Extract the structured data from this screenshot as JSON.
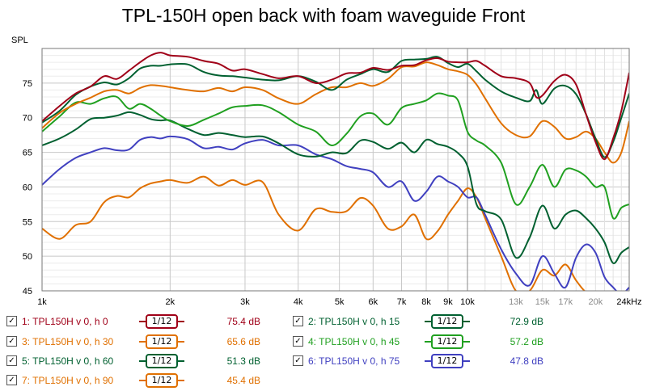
{
  "chart_data": {
    "type": "line",
    "title": "TPL-150H open back with foam waveguide Front",
    "ylabel": "SPL",
    "xscale": "log",
    "xlim": [
      1000,
      24000
    ],
    "ylim": [
      45,
      80
    ],
    "grid": true,
    "y_ticks": [
      75,
      70,
      65,
      60,
      55,
      50,
      45
    ],
    "x_ticks": [
      {
        "value": 1000,
        "label": "1k"
      },
      {
        "value": 2000,
        "label": "2k"
      },
      {
        "value": 3000,
        "label": "3k"
      },
      {
        "value": 4000,
        "label": "4k"
      },
      {
        "value": 5000,
        "label": "5k"
      },
      {
        "value": 6000,
        "label": "6k"
      },
      {
        "value": 7000,
        "label": "7k"
      },
      {
        "value": 8000,
        "label": "8k"
      },
      {
        "value": 9000,
        "label": "9k"
      },
      {
        "value": 10000,
        "label": "10k"
      },
      {
        "value": 13000,
        "label": "13k"
      },
      {
        "value": 15000,
        "label": "15k"
      },
      {
        "value": 17000,
        "label": "17k"
      },
      {
        "value": 20000,
        "label": "20k"
      },
      {
        "value": 24000,
        "label": "24kHz"
      }
    ],
    "series": [
      {
        "name": "1: TPL150H v 0, h 0",
        "color": "#a00018",
        "value_label": "75.4 dB",
        "x": [
          1000,
          1100,
          1200,
          1300,
          1400,
          1500,
          1600,
          1700,
          1800,
          1900,
          2000,
          2200,
          2400,
          2600,
          2800,
          3000,
          3300,
          3600,
          4000,
          4400,
          4800,
          5200,
          5600,
          6000,
          6500,
          7000,
          7500,
          8000,
          8500,
          9000,
          9500,
          10000,
          10500,
          11000,
          12000,
          13000,
          14000,
          14500,
          15000,
          16000,
          17000,
          18000,
          19000,
          20000,
          21000,
          22000,
          23000,
          24000
        ],
        "y": [
          69.5,
          71.7,
          73.5,
          74.5,
          76.0,
          75.6,
          76.8,
          78.0,
          79.0,
          79.4,
          79.0,
          78.8,
          78.2,
          77.8,
          76.8,
          77.0,
          76.3,
          75.7,
          76.0,
          75.0,
          75.5,
          76.4,
          76.5,
          77.2,
          76.9,
          77.5,
          77.6,
          78.3,
          78.6,
          78.1,
          78.0,
          78.0,
          78.2,
          77.5,
          76.0,
          75.7,
          75.0,
          73.0,
          73.2,
          75.3,
          76.2,
          74.8,
          70.5,
          66.5,
          64.0,
          67.0,
          71.0,
          76.5
        ]
      },
      {
        "name": "2: TPL150H v 0, h 15",
        "color": "#006030",
        "value_label": "72.9 dB",
        "x": [
          1000,
          1100,
          1200,
          1300,
          1400,
          1500,
          1600,
          1700,
          1800,
          1900,
          2000,
          2200,
          2400,
          2600,
          2800,
          3000,
          3300,
          3600,
          4000,
          4400,
          4800,
          5200,
          5600,
          6000,
          6500,
          7000,
          7500,
          8000,
          8500,
          9000,
          9500,
          10000,
          10500,
          11000,
          12000,
          13000,
          14000,
          14500,
          15000,
          16000,
          17000,
          18000,
          19000,
          20000,
          21000,
          22000,
          23000,
          24000
        ],
        "y": [
          69.3,
          71.0,
          73.3,
          74.5,
          75.1,
          74.8,
          75.7,
          77.1,
          77.5,
          77.5,
          77.7,
          77.7,
          76.6,
          76.1,
          76.0,
          75.8,
          75.5,
          75.4,
          76.0,
          75.2,
          74.0,
          75.5,
          76.3,
          77.0,
          76.6,
          78.2,
          78.4,
          78.5,
          78.8,
          77.9,
          77.3,
          77.8,
          76.7,
          75.5,
          73.8,
          72.9,
          72.4,
          74.0,
          72.0,
          74.2,
          74.6,
          73.4,
          70.5,
          67.0,
          64.3,
          66.5,
          70.0,
          73.5
        ]
      },
      {
        "name": "3: TPL150H v 0, h 30",
        "color": "#e07000",
        "value_label": "65.6 dB",
        "x": [
          1000,
          1100,
          1200,
          1300,
          1400,
          1500,
          1600,
          1700,
          1800,
          1900,
          2000,
          2200,
          2400,
          2600,
          2800,
          3000,
          3300,
          3600,
          4000,
          4400,
          4800,
          5200,
          5600,
          6000,
          6500,
          7000,
          7500,
          8000,
          8500,
          9000,
          9500,
          10000,
          10500,
          11000,
          12000,
          13000,
          14000,
          15000,
          16000,
          17000,
          18000,
          19000,
          20000,
          21000,
          22000,
          23000,
          24000
        ],
        "y": [
          68.5,
          70.7,
          72.0,
          72.9,
          73.8,
          74.0,
          73.5,
          74.3,
          74.7,
          74.6,
          74.4,
          74.0,
          73.8,
          74.3,
          73.8,
          74.4,
          74.0,
          72.8,
          72.0,
          73.4,
          74.4,
          74.4,
          75.0,
          74.6,
          75.6,
          77.3,
          77.4,
          78.0,
          77.6,
          77.0,
          76.7,
          76.2,
          74.8,
          72.8,
          69.2,
          67.5,
          67.3,
          69.5,
          68.7,
          67.0,
          67.2,
          68.0,
          67.0,
          65.0,
          63.5,
          65.0,
          69.5
        ]
      },
      {
        "name": "4: TPL150H v 0, h 45",
        "color": "#20a020",
        "value_label": "57.2 dB",
        "x": [
          1000,
          1100,
          1200,
          1300,
          1400,
          1500,
          1600,
          1700,
          1800,
          1900,
          2000,
          2200,
          2400,
          2600,
          2800,
          3000,
          3300,
          3600,
          4000,
          4400,
          4800,
          5200,
          5600,
          6000,
          6500,
          7000,
          7500,
          8000,
          8500,
          9000,
          9500,
          10000,
          10500,
          11000,
          12000,
          13000,
          14000,
          15000,
          16000,
          17000,
          18000,
          19000,
          20000,
          21000,
          22000,
          23000,
          24000
        ],
        "y": [
          68.0,
          70.2,
          72.2,
          72.0,
          72.8,
          73.0,
          71.3,
          72.0,
          71.3,
          70.3,
          69.5,
          68.8,
          69.7,
          70.6,
          71.5,
          71.7,
          71.8,
          70.8,
          69.0,
          68.0,
          66.0,
          67.7,
          70.2,
          70.6,
          69.0,
          71.4,
          72.0,
          72.5,
          73.5,
          73.2,
          72.5,
          68.0,
          66.7,
          66.0,
          63.5,
          57.5,
          60.0,
          63.2,
          60.0,
          62.5,
          62.4,
          61.5,
          60.0,
          60.0,
          55.5,
          57.0,
          57.5
        ]
      },
      {
        "name": "5: TPL150H v 0, h 60",
        "color": "#006030",
        "value_label": "51.3 dB",
        "x": [
          1000,
          1100,
          1200,
          1300,
          1400,
          1500,
          1600,
          1700,
          1800,
          1900,
          2000,
          2200,
          2400,
          2600,
          2800,
          3000,
          3300,
          3600,
          4000,
          4400,
          4800,
          5200,
          5600,
          6000,
          6500,
          7000,
          7500,
          8000,
          8500,
          9000,
          9500,
          10000,
          10500,
          11000,
          12000,
          13000,
          14000,
          15000,
          16000,
          17000,
          18000,
          19000,
          20000,
          21000,
          22000,
          23000,
          24000
        ],
        "y": [
          66.0,
          67.0,
          68.3,
          69.8,
          70.0,
          70.3,
          70.8,
          70.4,
          69.8,
          69.6,
          69.6,
          68.4,
          67.5,
          67.8,
          67.5,
          67.2,
          67.3,
          66.3,
          64.7,
          64.4,
          65.0,
          64.9,
          66.7,
          66.5,
          65.5,
          66.4,
          65.0,
          66.8,
          66.2,
          65.8,
          64.9,
          63.0,
          57.5,
          56.5,
          55.3,
          49.8,
          52.7,
          57.3,
          54.0,
          56.0,
          56.6,
          55.5,
          54.0,
          52.0,
          49.0,
          50.5,
          51.3
        ]
      },
      {
        "name": "6: TPL150H v 0, h 75",
        "color": "#4040c0",
        "value_label": "47.8 dB",
        "x": [
          1000,
          1100,
          1200,
          1300,
          1400,
          1500,
          1600,
          1700,
          1800,
          1900,
          2000,
          2200,
          2400,
          2600,
          2800,
          3000,
          3300,
          3600,
          4000,
          4400,
          4800,
          5200,
          5600,
          6000,
          6500,
          7000,
          7500,
          8000,
          8500,
          9000,
          9500,
          10000,
          10500,
          11000,
          12000,
          13000,
          14000,
          15000,
          16000,
          17000,
          18000,
          19000,
          20000,
          21000,
          22000,
          23000,
          24000
        ],
        "y": [
          60.3,
          62.6,
          64.2,
          65.0,
          65.6,
          65.3,
          65.4,
          66.8,
          67.2,
          67.0,
          67.3,
          66.9,
          65.6,
          65.8,
          65.4,
          66.3,
          66.8,
          66.0,
          66.0,
          64.7,
          64.0,
          63.0,
          62.6,
          62.1,
          60.0,
          60.8,
          58.0,
          59.3,
          61.5,
          60.8,
          60.0,
          58.5,
          58.5,
          56.0,
          51.0,
          47.5,
          45.8,
          50.0,
          47.5,
          45.5,
          49.8,
          51.7,
          50.5,
          47.0,
          45.5,
          44.5,
          45.5
        ]
      },
      {
        "name": "7: TPL150H v 0, h 90",
        "color": "#e07000",
        "value_label": "45.4 dB",
        "x": [
          1000,
          1100,
          1200,
          1300,
          1400,
          1500,
          1600,
          1700,
          1800,
          1900,
          2000,
          2200,
          2400,
          2600,
          2800,
          3000,
          3300,
          3600,
          4000,
          4400,
          4800,
          5200,
          5600,
          6000,
          6500,
          7000,
          7500,
          8000,
          8500,
          9000,
          9500,
          10000,
          10500,
          11000,
          12000,
          13000,
          14000,
          15000,
          16000,
          17000,
          18000,
          19000,
          20000,
          21000,
          22000,
          23000,
          24000
        ],
        "y": [
          54.0,
          52.5,
          54.5,
          55.0,
          57.8,
          58.7,
          58.5,
          59.8,
          60.5,
          60.8,
          61.0,
          60.6,
          61.5,
          60.2,
          61.0,
          60.3,
          60.7,
          56.0,
          53.7,
          56.8,
          56.4,
          56.5,
          58.4,
          57.3,
          54.0,
          54.3,
          56.0,
          52.5,
          53.6,
          56.0,
          58.0,
          59.8,
          58.5,
          55.5,
          50.0,
          45.0,
          45.0,
          48.0,
          47.2,
          48.8,
          46.5,
          44.8,
          44.5,
          44.5,
          44.5,
          44.5,
          44.5
        ]
      }
    ]
  },
  "legend": {
    "smoothing_label": "1/12",
    "items": [
      {
        "label": "1: TPL150H v 0, h 0",
        "value": "75.4 dB",
        "color": "#a00018",
        "checked": "✓"
      },
      {
        "label": "2: TPL150H v 0, h 15",
        "value": "72.9 dB",
        "color": "#006030",
        "checked": "✓"
      },
      {
        "label": "3: TPL150H v 0, h 30",
        "value": "65.6 dB",
        "color": "#e07000",
        "checked": "✓"
      },
      {
        "label": "4: TPL150H v 0, h 45",
        "value": "57.2 dB",
        "color": "#20a020",
        "checked": "✓"
      },
      {
        "label": "5: TPL150H v 0, h 60",
        "value": "51.3 dB",
        "color": "#006030",
        "checked": "✓"
      },
      {
        "label": "6: TPL150H v 0, h 75",
        "value": "47.8 dB",
        "color": "#4040c0",
        "checked": "✓"
      },
      {
        "label": "7: TPL150H v 0, h 90",
        "value": "45.4 dB",
        "color": "#e07000",
        "checked": "✓"
      }
    ]
  }
}
